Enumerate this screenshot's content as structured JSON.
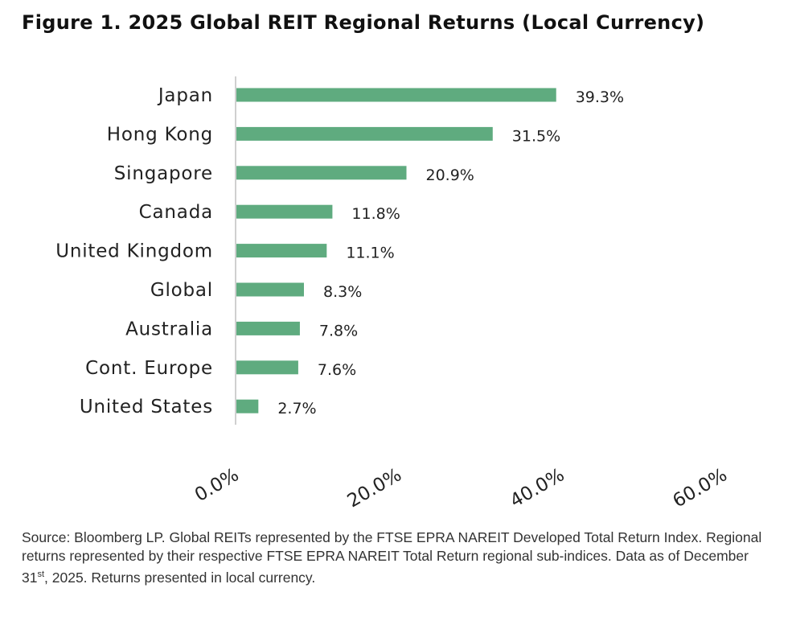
{
  "title": "Figure 1. 2025 Global REIT Regional Returns (Local Currency)",
  "chart_data": {
    "type": "bar",
    "orientation": "horizontal",
    "categories": [
      "Japan",
      "Hong Kong",
      "Singapore",
      "Canada",
      "United Kingdom",
      "Global",
      "Australia",
      "Cont. Europe",
      "United States"
    ],
    "values": [
      39.3,
      31.5,
      20.9,
      11.8,
      11.1,
      8.3,
      7.8,
      7.6,
      2.7
    ],
    "data_labels": [
      "39.3%",
      "31.5%",
      "20.9%",
      "11.8%",
      "11.1%",
      "8.3%",
      "7.8%",
      "7.6%",
      "2.7%"
    ],
    "xticks": [
      "0.0%",
      "20.0%",
      "40.0%",
      "60.0%"
    ],
    "xlim": [
      0,
      60
    ],
    "grid": false,
    "bar_color": "#5fab7f"
  },
  "note": {
    "text_before": "Source: Bloomberg LP. Global REITs represented by the FTSE EPRA NAREIT Developed Total Return Index. Regional returns represented by their respective FTSE EPRA NAREIT Total Return regional sub-indices. Data as of December 31",
    "sup": "st",
    "text_after": ", 2025. Returns presented in local currency."
  }
}
